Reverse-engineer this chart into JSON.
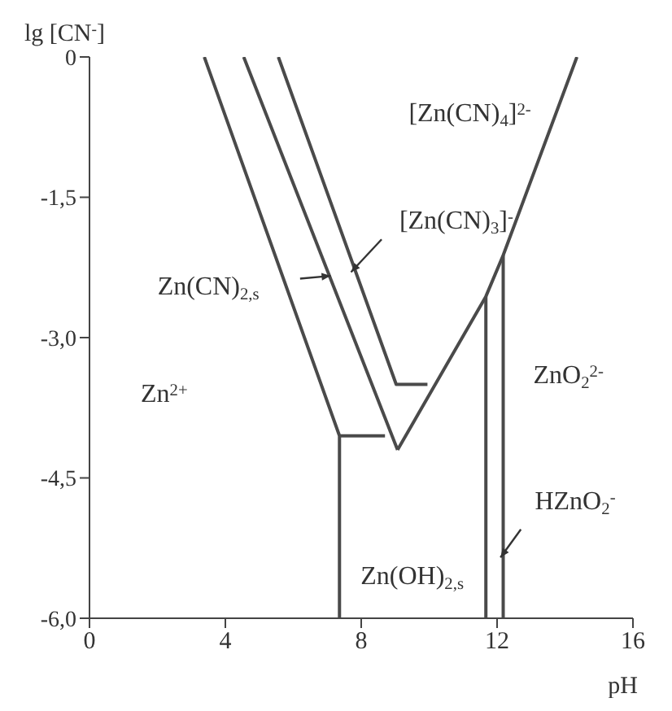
{
  "chart_data": {
    "type": "line",
    "xlabel": "pH",
    "ylabel": "lg [CN$^{-}$]",
    "xlim": [
      0,
      16
    ],
    "xticks": [
      0,
      4,
      8,
      12,
      16
    ],
    "ylim": [
      -6,
      0
    ],
    "yticks": [
      {
        "value": 0,
        "label": "0"
      },
      {
        "value": -1.5,
        "label": "-1,5"
      },
      {
        "value": -3,
        "label": "-3,0"
      },
      {
        "value": -4.5,
        "label": "-4,5"
      },
      {
        "value": -6,
        "label": "-6,0"
      }
    ],
    "marker": "none",
    "line_style": "solid",
    "series": [
      {
        "color": "#4a4a4a",
        "x": [
          3.38,
          7.36,
          7.36
        ],
        "values": [
          0,
          -4.05,
          -6
        ]
      },
      {
        "color": "#4a4a4a",
        "x": [
          7.36,
          8.7
        ],
        "values": [
          -4.05,
          -4.05
        ]
      },
      {
        "color": "#4a4a4a",
        "x": [
          4.54,
          9.07
        ],
        "values": [
          0,
          -4.2
        ]
      },
      {
        "color": "#4a4a4a",
        "x": [
          5.56,
          9.03,
          9.95
        ],
        "values": [
          0,
          -3.5,
          -3.5
        ]
      },
      {
        "color": "#4a4a4a",
        "x": [
          9.07,
          11.67,
          12.18,
          14.35
        ],
        "values": [
          -4.2,
          -2.56,
          -2.12,
          0
        ]
      },
      {
        "color": "#4a4a4a",
        "x": [
          11.67,
          11.67
        ],
        "values": [
          -2.56,
          -6
        ]
      },
      {
        "color": "#4a4a4a",
        "x": [
          12.18,
          12.18
        ],
        "values": [
          -2.12,
          -6
        ]
      }
    ],
    "annotations": [
      "[Zn(CN)$_{4}$]$^{2-}$",
      "[Zn(CN)$_{3}$]$^{-}$",
      "Zn(CN)$_{2,s}$",
      "Zn$^{2+}$",
      "ZnO$_{2}$$^{2-}$",
      "HZnO$_{2}$$^{-}$",
      "Zn(OH)$_{2,s}$"
    ]
  }
}
